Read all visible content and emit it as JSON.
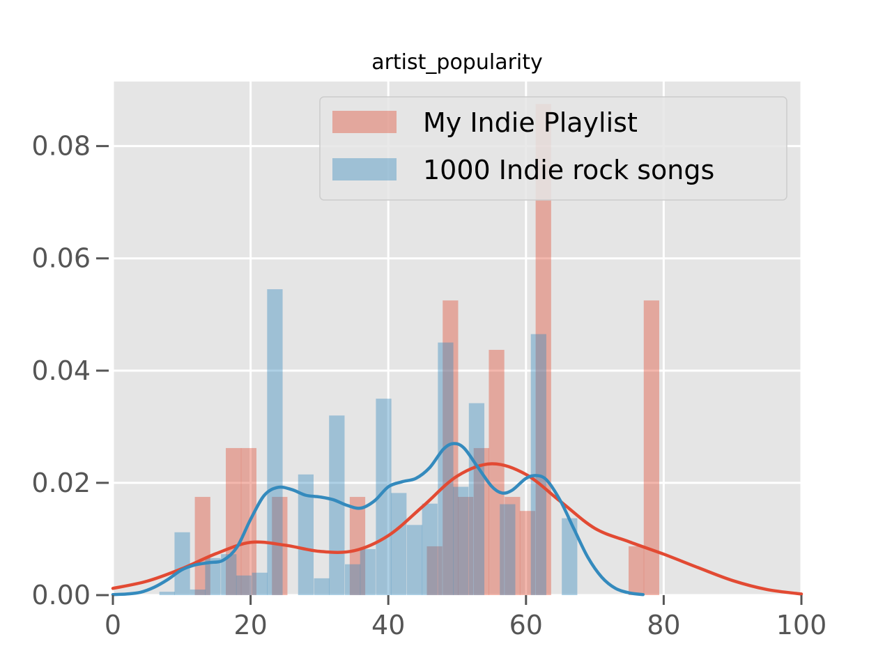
{
  "chart_data": {
    "type": "bar",
    "title": "artist_popularity",
    "xlabel": "",
    "ylabel": "",
    "xlim": [
      0,
      100
    ],
    "ylim": [
      0,
      0.0915
    ],
    "xticks": [
      0,
      20,
      40,
      60,
      80,
      100
    ],
    "xtick_labels": [
      "0",
      "20",
      "40",
      "60",
      "80",
      "100"
    ],
    "yticks": [
      0.0,
      0.02,
      0.04,
      0.06,
      0.08
    ],
    "ytick_labels": [
      "0.00",
      "0.02",
      "0.04",
      "0.06",
      "0.08"
    ],
    "grid": true,
    "legend_position": "top-right",
    "background_color": "#e5e5e5",
    "series": [
      {
        "name": "My Indie Playlist",
        "kind": "histogram",
        "color": "#e24a33",
        "bin_width": 2.25,
        "bins": [
          [
            11.9,
            0.0175
          ],
          [
            14.1,
            0.0
          ],
          [
            16.4,
            0.0262
          ],
          [
            18.6,
            0.0262
          ],
          [
            20.9,
            0.0
          ],
          [
            23.1,
            0.0175
          ],
          [
            25.4,
            0.0
          ],
          [
            27.6,
            0.0
          ],
          [
            29.9,
            0.0
          ],
          [
            32.1,
            0.0
          ],
          [
            34.4,
            0.0175
          ],
          [
            36.6,
            0.0
          ],
          [
            38.9,
            0.0
          ],
          [
            41.1,
            0.0
          ],
          [
            43.4,
            0.0
          ],
          [
            45.6,
            0.0087
          ],
          [
            47.9,
            0.0525
          ],
          [
            50.1,
            0.0175
          ],
          [
            52.4,
            0.0262
          ],
          [
            54.6,
            0.0437
          ],
          [
            56.9,
            0.0175
          ],
          [
            59.1,
            0.015
          ],
          [
            61.4,
            0.0875
          ],
          [
            63.6,
            0.0
          ],
          [
            65.9,
            0.0
          ],
          [
            68.1,
            0.0
          ],
          [
            70.4,
            0.0
          ],
          [
            72.6,
            0.0
          ],
          [
            74.9,
            0.0087
          ],
          [
            77.1,
            0.0525
          ]
        ],
        "kde": [
          [
            0,
            0.0012
          ],
          [
            5,
            0.0025
          ],
          [
            10,
            0.0047
          ],
          [
            15,
            0.0074
          ],
          [
            20,
            0.0094
          ],
          [
            25,
            0.0089
          ],
          [
            30,
            0.0078
          ],
          [
            35,
            0.0079
          ],
          [
            40,
            0.0106
          ],
          [
            45,
            0.0158
          ],
          [
            50,
            0.0212
          ],
          [
            55,
            0.0234
          ],
          [
            60,
            0.0215
          ],
          [
            65,
            0.0167
          ],
          [
            70,
            0.0119
          ],
          [
            75,
            0.0095
          ],
          [
            80,
            0.0073
          ],
          [
            85,
            0.0049
          ],
          [
            90,
            0.0026
          ],
          [
            95,
            0.001
          ],
          [
            100,
            0.0002
          ]
        ]
      },
      {
        "name": "1000 Indie rock songs",
        "kind": "histogram",
        "color": "#348abd",
        "bin_width": 2.25,
        "bins": [
          [
            6.75,
            0.0006
          ],
          [
            8.95,
            0.0112
          ],
          [
            11.2,
            0.001
          ],
          [
            13.4,
            0.0066
          ],
          [
            15.7,
            0.0073
          ],
          [
            17.9,
            0.0035
          ],
          [
            20.2,
            0.004
          ],
          [
            22.4,
            0.0545
          ],
          [
            24.7,
            0.0
          ],
          [
            26.9,
            0.0215
          ],
          [
            29.2,
            0.003
          ],
          [
            31.4,
            0.032
          ],
          [
            33.7,
            0.0055
          ],
          [
            35.9,
            0.0082
          ],
          [
            38.2,
            0.035
          ],
          [
            40.4,
            0.0182
          ],
          [
            42.7,
            0.0125
          ],
          [
            44.9,
            0.0163
          ],
          [
            47.2,
            0.045
          ],
          [
            49.4,
            0.0193
          ],
          [
            51.7,
            0.0342
          ],
          [
            53.9,
            0.0
          ],
          [
            56.2,
            0.0162
          ],
          [
            58.4,
            0.0
          ],
          [
            60.7,
            0.0465
          ],
          [
            62.9,
            0.0
          ],
          [
            65.2,
            0.0137
          ]
        ],
        "kde": [
          [
            0,
            0.0001
          ],
          [
            2,
            0.0002
          ],
          [
            4,
            0.0005
          ],
          [
            6,
            0.0014
          ],
          [
            8,
            0.0028
          ],
          [
            10,
            0.0045
          ],
          [
            12,
            0.0054
          ],
          [
            14,
            0.0058
          ],
          [
            16,
            0.0062
          ],
          [
            18,
            0.0085
          ],
          [
            20,
            0.0135
          ],
          [
            22,
            0.0178
          ],
          [
            24,
            0.0192
          ],
          [
            26,
            0.0188
          ],
          [
            28,
            0.0178
          ],
          [
            30,
            0.0175
          ],
          [
            32,
            0.017
          ],
          [
            34,
            0.016
          ],
          [
            36,
            0.0155
          ],
          [
            38,
            0.0168
          ],
          [
            40,
            0.0193
          ],
          [
            42,
            0.0202
          ],
          [
            44,
            0.0208
          ],
          [
            46,
            0.0227
          ],
          [
            48,
            0.026
          ],
          [
            49.5,
            0.027
          ],
          [
            51,
            0.0262
          ],
          [
            53,
            0.0228
          ],
          [
            55,
            0.0194
          ],
          [
            56.5,
            0.0182
          ],
          [
            58,
            0.0187
          ],
          [
            60,
            0.0208
          ],
          [
            61.5,
            0.0213
          ],
          [
            63,
            0.0205
          ],
          [
            65,
            0.0168
          ],
          [
            67,
            0.0117
          ],
          [
            69,
            0.0067
          ],
          [
            71,
            0.0032
          ],
          [
            73,
            0.0012
          ],
          [
            75,
            0.0004
          ],
          [
            77,
            0.0001
          ]
        ]
      }
    ],
    "legend": [
      {
        "label": "My Indie Playlist",
        "color": "#e24a33"
      },
      {
        "label": "1000 Indie rock songs",
        "color": "#348abd"
      }
    ]
  }
}
